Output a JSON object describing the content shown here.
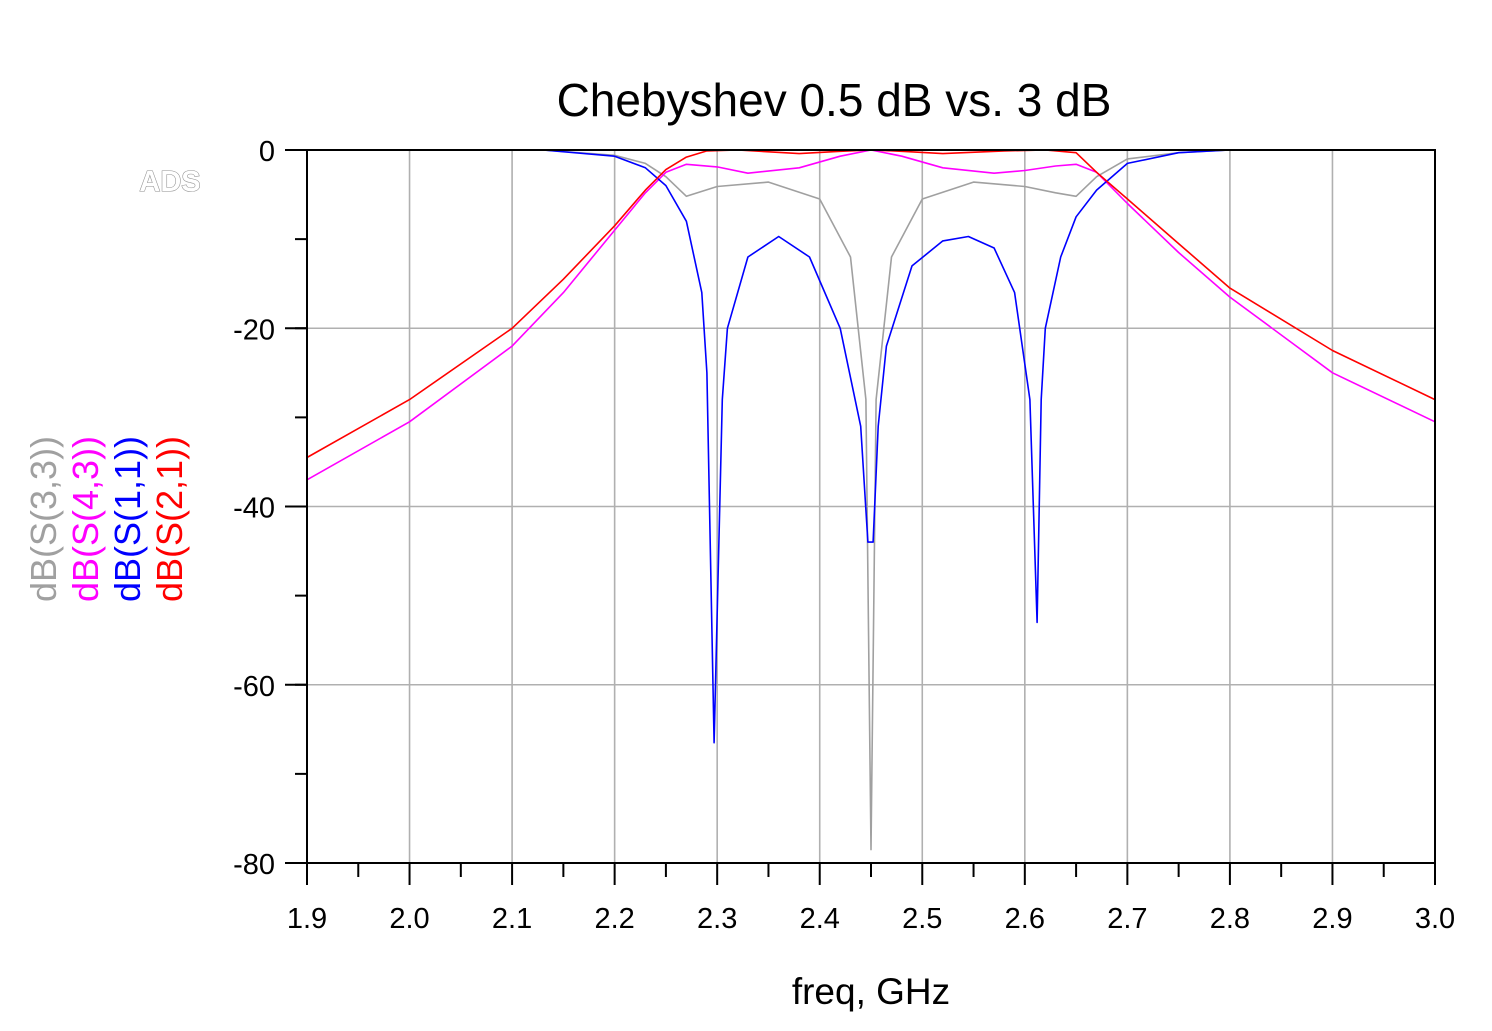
{
  "watermark": "ADS",
  "chart_data": {
    "type": "line",
    "title": "Chebyshev 0.5 dB vs. 3 dB",
    "xlabel": "freq, GHz",
    "xlim": [
      1.9,
      3.0
    ],
    "ylim": [
      -80,
      0
    ],
    "xticks": [
      "1.9",
      "2.0",
      "2.1",
      "2.2",
      "2.3",
      "2.4",
      "2.5",
      "2.6",
      "2.7",
      "2.8",
      "2.9",
      "3.0"
    ],
    "yticks": [
      "0",
      "-20",
      "-40",
      "-60",
      "-80"
    ],
    "grid": true,
    "legend": "left-vertical",
    "series": [
      {
        "name": "dB(S(3,3))",
        "color": "#a0a0a0",
        "x": [
          2.13,
          2.2,
          2.23,
          2.25,
          2.27,
          2.3,
          2.35,
          2.4,
          2.43,
          2.445,
          2.45,
          2.455,
          2.47,
          2.5,
          2.55,
          2.6,
          2.63,
          2.65,
          2.67,
          2.7,
          2.75,
          2.8,
          2.82
        ],
        "y": [
          0,
          -0.6,
          -1.5,
          -3.0,
          -5.2,
          -4.1,
          -3.6,
          -5.5,
          -12,
          -28,
          -78.5,
          -28,
          -12,
          -5.5,
          -3.6,
          -4.1,
          -4.8,
          -5.2,
          -3.0,
          -1.0,
          -0.3,
          0,
          0
        ]
      },
      {
        "name": "dB(S(4,3))",
        "color": "#ff00ff",
        "x": [
          1.9,
          2.0,
          2.1,
          2.15,
          2.2,
          2.23,
          2.25,
          2.27,
          2.3,
          2.33,
          2.38,
          2.42,
          2.45,
          2.48,
          2.52,
          2.57,
          2.6,
          2.63,
          2.65,
          2.67,
          2.7,
          2.75,
          2.8,
          2.9,
          3.0
        ],
        "y": [
          -37,
          -30.5,
          -22,
          -16,
          -9,
          -4.8,
          -2.5,
          -1.6,
          -1.9,
          -2.6,
          -2.0,
          -0.7,
          0,
          -0.7,
          -2.0,
          -2.6,
          -2.3,
          -1.8,
          -1.6,
          -2.5,
          -6.0,
          -11.5,
          -16.5,
          -25,
          -30.5
        ]
      },
      {
        "name": "dB(S(1,1))",
        "color": "#0000ff",
        "x": [
          2.13,
          2.2,
          2.23,
          2.25,
          2.27,
          2.285,
          2.29,
          2.297,
          2.305,
          2.31,
          2.33,
          2.36,
          2.39,
          2.42,
          2.44,
          2.447,
          2.452,
          2.457,
          2.465,
          2.49,
          2.52,
          2.545,
          2.57,
          2.59,
          2.605,
          2.612,
          2.616,
          2.62,
          2.635,
          2.65,
          2.67,
          2.7,
          2.75,
          2.8,
          2.82
        ],
        "y": [
          0,
          -0.7,
          -2.0,
          -4.0,
          -8.0,
          -16,
          -25,
          -66.5,
          -28,
          -20,
          -12,
          -9.7,
          -12,
          -20,
          -31,
          -44,
          -44,
          -31,
          -22,
          -13,
          -10.2,
          -9.7,
          -11,
          -16,
          -28,
          -53,
          -28,
          -20,
          -12,
          -7.5,
          -4.5,
          -1.5,
          -0.3,
          0,
          0
        ]
      },
      {
        "name": "dB(S(2,1))",
        "color": "#ff0000",
        "x": [
          1.9,
          2.0,
          2.1,
          2.15,
          2.2,
          2.23,
          2.25,
          2.27,
          2.29,
          2.32,
          2.38,
          2.42,
          2.45,
          2.48,
          2.52,
          2.58,
          2.62,
          2.65,
          2.67,
          2.7,
          2.75,
          2.8,
          2.9,
          3.0
        ],
        "y": [
          -34.5,
          -28,
          -20,
          -14.5,
          -8.5,
          -4.5,
          -2.2,
          -0.8,
          -0.1,
          0,
          -0.4,
          -0.15,
          0,
          -0.15,
          -0.4,
          -0.1,
          0,
          -0.3,
          -2.5,
          -5.5,
          -10.5,
          -15.5,
          -22.5,
          -28
        ]
      }
    ]
  }
}
